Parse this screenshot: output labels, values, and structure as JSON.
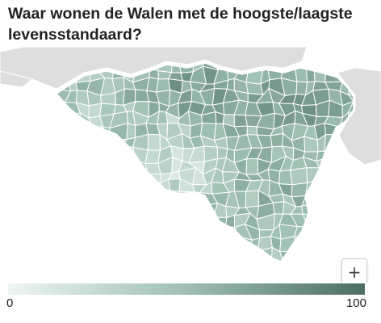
{
  "title": "Waar wonen de Walen met de hoogste/laagste levensstandaard?",
  "map": {
    "region": "Wallonië",
    "context_color": "#dedede",
    "border_color": "#ffffff",
    "color_scale": {
      "low": "#eef5f2",
      "mid": "#9ebfb2",
      "high": "#4d6e64"
    },
    "zoom": {
      "in_label": "+",
      "out_label": "−"
    }
  },
  "legend": {
    "min": "0",
    "max": "100",
    "gradient": [
      "#eef5f2",
      "#9ebfb2",
      "#4d6e64"
    ]
  }
}
